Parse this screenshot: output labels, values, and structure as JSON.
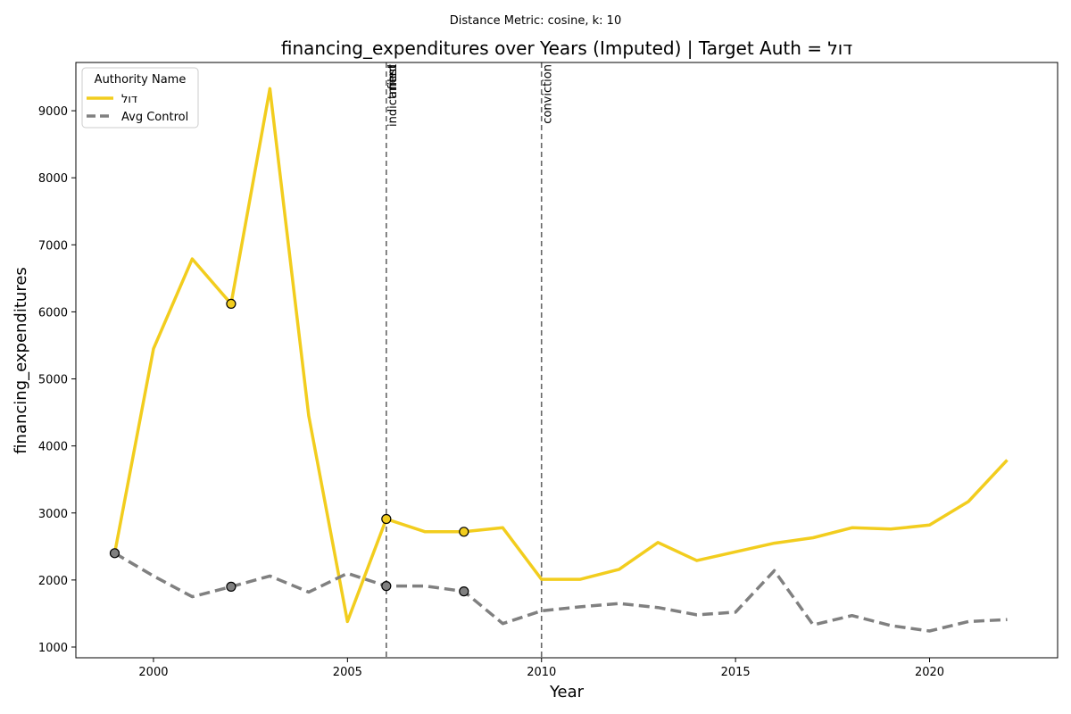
{
  "chart_data": {
    "type": "line",
    "suptitle": "Distance Metric: cosine, k: 10",
    "title": "financing_expenditures over Years (Imputed) | Target Auth = דול",
    "xlabel": "Year",
    "ylabel": "financing_expenditures",
    "xlim": [
      1998,
      2023.3
    ],
    "ylim": [
      840,
      9720
    ],
    "xticks": [
      2000,
      2005,
      2010,
      2015,
      2020
    ],
    "yticks": [
      1000,
      2000,
      3000,
      4000,
      5000,
      6000,
      7000,
      8000,
      9000
    ],
    "legend": {
      "title": "Authority Name",
      "placement": "top-left"
    },
    "x": [
      1999,
      2000,
      2001,
      2002,
      2003,
      2004,
      2005,
      2006,
      2007,
      2008,
      2009,
      2010,
      2011,
      2012,
      2013,
      2014,
      2015,
      2016,
      2017,
      2018,
      2019,
      2020,
      2021,
      2022
    ],
    "series": [
      {
        "name": "דול",
        "color": "#f2cd1e",
        "style": "solid",
        "values": [
          2400,
          5450,
          6790,
          6120,
          9330,
          4450,
          1380,
          2910,
          2720,
          2720,
          2780,
          2010,
          2010,
          2160,
          2560,
          2290,
          2420,
          2550,
          2630,
          2780,
          2760,
          2820,
          3170,
          3790
        ],
        "markers": [
          {
            "x": 2002,
            "y": 6120
          },
          {
            "x": 2006,
            "y": 2910
          },
          {
            "x": 2008,
            "y": 2720
          }
        ]
      },
      {
        "name": "Avg Control",
        "color": "#808080",
        "style": "dashed",
        "values": [
          2400,
          2060,
          1750,
          1900,
          2060,
          1820,
          2100,
          1910,
          1910,
          1830,
          1350,
          1540,
          1600,
          1650,
          1590,
          1480,
          1520,
          2140,
          1330,
          1470,
          1320,
          1240,
          1380,
          1410
        ],
        "markers": [
          {
            "x": 1999,
            "y": 2400
          },
          {
            "x": 2002,
            "y": 1900
          },
          {
            "x": 2006,
            "y": 1910
          },
          {
            "x": 2008,
            "y": 1830
          }
        ]
      }
    ],
    "events": [
      {
        "x": 2006,
        "labels": [
          "indictment",
          "arrest",
          "filed"
        ]
      },
      {
        "x": 2010,
        "labels": [
          "conviction"
        ]
      }
    ]
  }
}
